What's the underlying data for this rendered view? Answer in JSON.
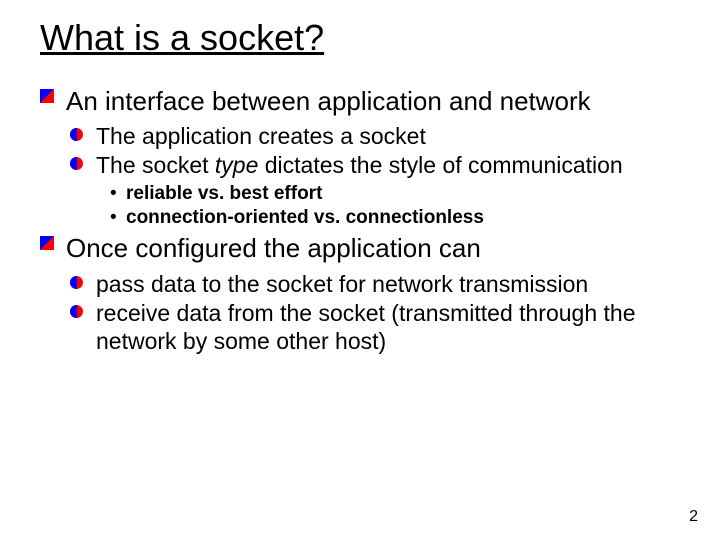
{
  "title": "What is a socket?",
  "bullets": {
    "a": "An interface between application and network",
    "a1": "The application creates a socket",
    "a2_pre": "The socket ",
    "a2_em": "type",
    "a2_post": " dictates the style of communication",
    "a2a": "reliable vs. best effort",
    "a2b": "connection-oriented vs. connectionless",
    "b": "Once configured the application can",
    "b1": "pass data to the socket for network transmission",
    "b2": "receive data from the socket (transmitted through the network by some other host)"
  },
  "page_number": "2",
  "colors": {
    "bullet_red": "#ff0000",
    "bullet_blue": "#0000ff",
    "text": "#000000",
    "background": "#ffffff"
  },
  "fonts": {
    "family": "Comic Sans MS",
    "title_size_pt": 36,
    "l1_size_pt": 26,
    "l2_size_pt": 23,
    "l3_size_pt": 19
  }
}
